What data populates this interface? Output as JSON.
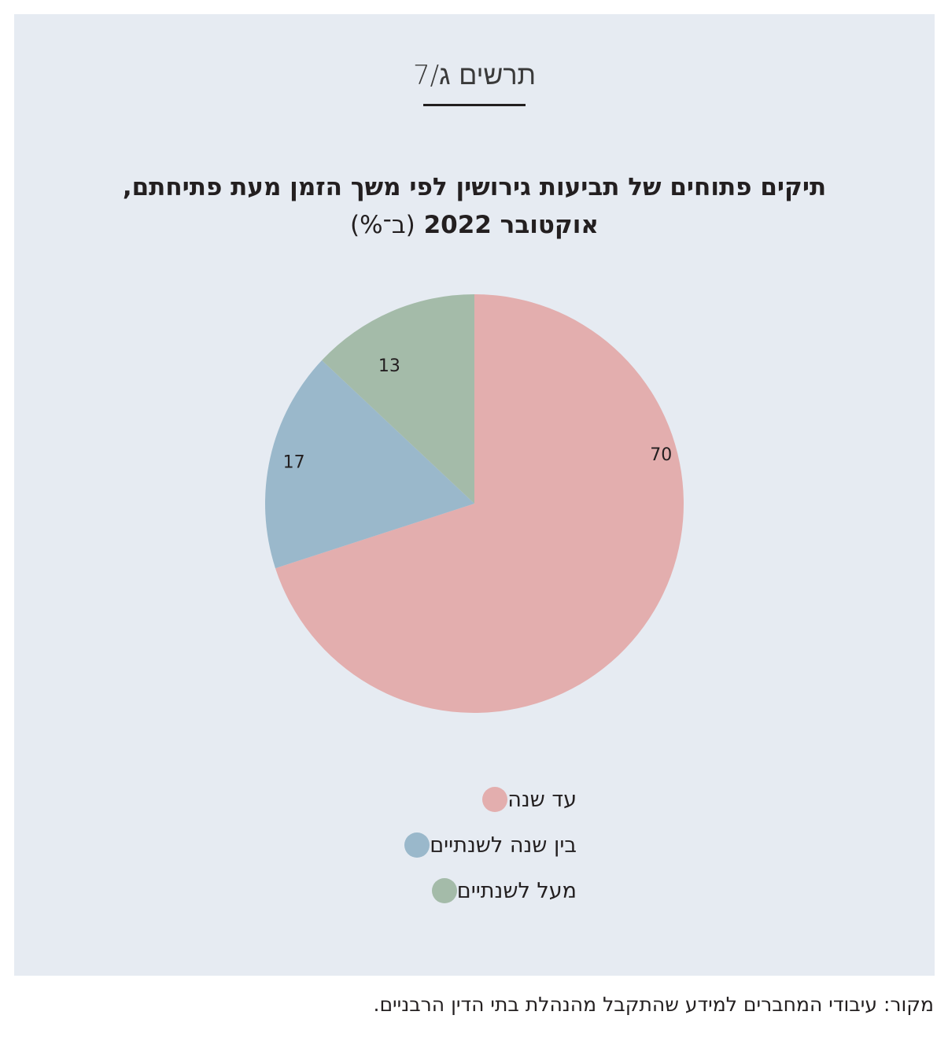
{
  "figure_label": "תרשים ג/7",
  "title_line1": "תיקים פתוחים של תביעות גירושין לפי משך הזמן מעת פתיחתם,",
  "title_line2_bold": "אוקטובר 2022",
  "title_line2_unit": "(ב־%)",
  "source": "מקור: עיבודי המחברים למידע שהתקבל מהנהלת בתי הדין הרבניים.",
  "chart_data": {
    "type": "pie",
    "categories": [
      "עד שנה",
      "בין שנה לשנתיים",
      "מעל לשנתיים"
    ],
    "values": [
      70,
      17,
      13
    ],
    "colors": [
      "#e3aeae",
      "#9ab8cb",
      "#a4bba9"
    ],
    "start_angle_deg": 0,
    "direction": "clockwise",
    "legend_position": "bottom"
  },
  "legend": [
    {
      "label": "עד שנה",
      "color": "#e3aeae"
    },
    {
      "label": "בין שנה לשנתיים",
      "color": "#9ab8cb"
    },
    {
      "label": "מעל לשנתיים",
      "color": "#a4bba9"
    }
  ]
}
